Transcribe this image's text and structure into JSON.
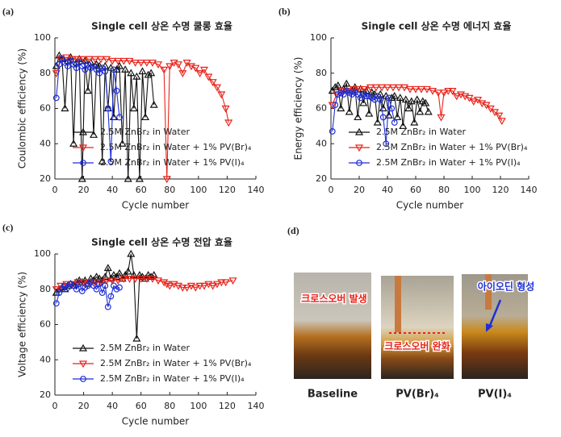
{
  "chart_data": [
    {
      "type": "line",
      "panel": "(a)",
      "title": "Single cell 상온 수명 쿨롱 효율",
      "xlabel": "Cycle number",
      "ylabel": "Coulombic efficiency (%)",
      "xlim": [
        0,
        140
      ],
      "xticks": [
        0,
        20,
        40,
        60,
        80,
        100,
        120,
        140
      ],
      "ylim": [
        20,
        100
      ],
      "yticks": [
        20,
        40,
        60,
        80,
        100
      ],
      "legend": "lower left",
      "series": [
        {
          "name": "2.5M ZnBr₂ in Water",
          "color": "#111111",
          "marker": "triangle-up",
          "x": [
            1,
            3,
            5,
            7,
            9,
            11,
            13,
            15,
            17,
            19,
            21,
            23,
            25,
            27,
            29,
            31,
            33,
            35,
            37,
            39,
            41,
            43,
            45,
            47,
            49,
            51,
            53,
            55,
            57,
            59,
            61,
            63,
            65,
            67,
            69
          ],
          "values": [
            84,
            90,
            88,
            60,
            87,
            89,
            40,
            86,
            88,
            20,
            87,
            70,
            86,
            45,
            85,
            84,
            30,
            84,
            60,
            83,
            55,
            82,
            84,
            40,
            82,
            20,
            80,
            60,
            78,
            20,
            81,
            55,
            79,
            80,
            62
          ]
        },
        {
          "name": "2.5M ZnBr₂ in Water + 1% PV(Br)₄",
          "color": "#e8231a",
          "marker": "triangle-down",
          "x": [
            1,
            4,
            8,
            12,
            16,
            20,
            24,
            28,
            32,
            36,
            40,
            44,
            48,
            52,
            56,
            60,
            64,
            68,
            72,
            76,
            78,
            80,
            83,
            86,
            89,
            92,
            95,
            98,
            101,
            104,
            107,
            110,
            113,
            116,
            119,
            121
          ],
          "values": [
            80,
            88,
            89,
            88,
            88,
            88,
            88,
            88,
            88,
            88,
            87,
            87,
            87,
            87,
            86,
            86,
            86,
            86,
            85,
            82,
            20,
            84,
            86,
            85,
            80,
            86,
            84,
            83,
            80,
            82,
            78,
            75,
            72,
            68,
            60,
            52
          ]
        },
        {
          "name": "2.5M ZnBr₂ in Water + 1% PV(I)₄",
          "color": "#1f2fd6",
          "marker": "circle",
          "x": [
            1,
            3,
            5,
            7,
            9,
            11,
            13,
            15,
            17,
            19,
            21,
            23,
            25,
            27,
            29,
            31,
            33,
            35,
            37,
            39,
            41,
            43,
            45
          ],
          "values": [
            66,
            85,
            88,
            86,
            84,
            87,
            85,
            83,
            86,
            84,
            82,
            85,
            83,
            84,
            82,
            80,
            83,
            81,
            60,
            30,
            82,
            70,
            55
          ]
        }
      ]
    },
    {
      "type": "line",
      "panel": "(b)",
      "title": "Single cell 상온 수명 에너지 효율",
      "xlabel": "Cycle number",
      "ylabel": "Energy efficiency (%)",
      "xlim": [
        0,
        140
      ],
      "xticks": [
        0,
        20,
        40,
        60,
        80,
        100,
        120,
        140
      ],
      "ylim": [
        20,
        100
      ],
      "yticks": [
        20,
        40,
        60,
        80,
        100
      ],
      "legend": "lower left",
      "series": [
        {
          "name": "2.5M ZnBr₂ in Water",
          "color": "#111111",
          "marker": "triangle-up",
          "x": [
            1,
            3,
            5,
            7,
            9,
            11,
            13,
            15,
            17,
            19,
            21,
            23,
            25,
            27,
            29,
            31,
            33,
            35,
            37,
            39,
            41,
            43,
            45,
            47,
            49,
            51,
            53,
            55,
            57,
            59,
            61,
            63,
            65,
            67,
            69
          ],
          "values": [
            70,
            72,
            73,
            60,
            71,
            74,
            58,
            70,
            72,
            55,
            71,
            63,
            70,
            57,
            69,
            68,
            52,
            68,
            60,
            67,
            56,
            66,
            67,
            55,
            66,
            50,
            65,
            60,
            64,
            52,
            65,
            58,
            64,
            63,
            58
          ]
        },
        {
          "name": "2.5M ZnBr₂ in Water + 1% PV(Br)₄",
          "color": "#e8231a",
          "marker": "triangle-down",
          "x": [
            1,
            4,
            8,
            12,
            16,
            20,
            24,
            28,
            32,
            36,
            40,
            44,
            48,
            52,
            56,
            60,
            64,
            68,
            72,
            76,
            78,
            80,
            83,
            86,
            89,
            92,
            95,
            98,
            101,
            104,
            107,
            110,
            113,
            116,
            119,
            121
          ],
          "values": [
            62,
            68,
            70,
            70,
            71,
            71,
            71,
            72,
            72,
            72,
            72,
            72,
            72,
            72,
            71,
            71,
            71,
            71,
            70,
            69,
            55,
            69,
            70,
            70,
            67,
            68,
            67,
            66,
            64,
            65,
            63,
            62,
            60,
            58,
            56,
            53
          ]
        },
        {
          "name": "2.5M ZnBr₂ in Water + 1% PV(I)₄",
          "color": "#1f2fd6",
          "marker": "circle",
          "x": [
            1,
            3,
            5,
            7,
            9,
            11,
            13,
            15,
            17,
            19,
            21,
            23,
            25,
            27,
            29,
            31,
            33,
            35,
            37,
            39,
            41,
            43,
            45
          ],
          "values": [
            47,
            62,
            68,
            69,
            68,
            70,
            69,
            68,
            69,
            68,
            66,
            68,
            67,
            67,
            66,
            65,
            67,
            65,
            55,
            40,
            66,
            60,
            52
          ]
        }
      ]
    },
    {
      "type": "line",
      "panel": "(c)",
      "title": "Single cell 상온 수명 전압 효율",
      "xlabel": "Cycle number",
      "ylabel": "Voltage efficiency (%)",
      "xlim": [
        0,
        140
      ],
      "xticks": [
        0,
        20,
        40,
        60,
        80,
        100,
        120,
        140
      ],
      "ylim": [
        20,
        100
      ],
      "yticks": [
        20,
        40,
        60,
        80,
        100
      ],
      "legend": "lower left",
      "series": [
        {
          "name": "2.5M ZnBr₂ in Water",
          "color": "#111111",
          "marker": "triangle-up",
          "x": [
            1,
            3,
            5,
            7,
            9,
            11,
            13,
            15,
            17,
            19,
            21,
            23,
            25,
            27,
            29,
            31,
            33,
            35,
            37,
            39,
            41,
            43,
            45,
            47,
            49,
            51,
            53,
            55,
            57,
            59,
            61,
            63,
            65,
            67,
            69
          ],
          "values": [
            78,
            80,
            81,
            80,
            82,
            83,
            82,
            84,
            85,
            84,
            85,
            83,
            86,
            85,
            87,
            86,
            85,
            87,
            92,
            86,
            88,
            87,
            89,
            86,
            88,
            90,
            100,
            88,
            52,
            88,
            87,
            86,
            88,
            87,
            88
          ]
        },
        {
          "name": "2.5M ZnBr₂ in Water + 1% PV(Br)₄",
          "color": "#e8231a",
          "marker": "triangle-down",
          "x": [
            1,
            4,
            8,
            12,
            16,
            20,
            24,
            28,
            32,
            36,
            40,
            44,
            48,
            52,
            56,
            60,
            64,
            68,
            72,
            76,
            78,
            80,
            83,
            86,
            89,
            92,
            95,
            98,
            101,
            104,
            107,
            110,
            113,
            116,
            119,
            124
          ],
          "values": [
            80,
            82,
            83,
            83,
            84,
            84,
            84,
            84,
            84,
            85,
            85,
            85,
            86,
            86,
            86,
            86,
            86,
            86,
            85,
            84,
            83,
            82,
            83,
            82,
            81,
            81,
            82,
            81,
            82,
            82,
            83,
            82,
            83,
            84,
            84,
            85
          ]
        },
        {
          "name": "2.5M ZnBr₂ in Water + 1% PV(I)₄",
          "color": "#1f2fd6",
          "marker": "circle",
          "x": [
            1,
            3,
            5,
            7,
            9,
            11,
            13,
            15,
            17,
            19,
            21,
            23,
            25,
            27,
            29,
            31,
            33,
            35,
            37,
            39,
            41,
            43,
            45
          ],
          "values": [
            72,
            78,
            80,
            82,
            81,
            83,
            82,
            80,
            83,
            79,
            81,
            82,
            84,
            82,
            80,
            83,
            78,
            82,
            70,
            76,
            82,
            80,
            81
          ]
        }
      ]
    }
  ],
  "photo_panel": {
    "panel": "(d)",
    "labels": [
      "Baseline",
      "PV(Br)₄",
      "PV(I)₄"
    ],
    "annotations": [
      "크로스오버 발생",
      "크로스오버 완화",
      "아이오딘 형성"
    ]
  }
}
